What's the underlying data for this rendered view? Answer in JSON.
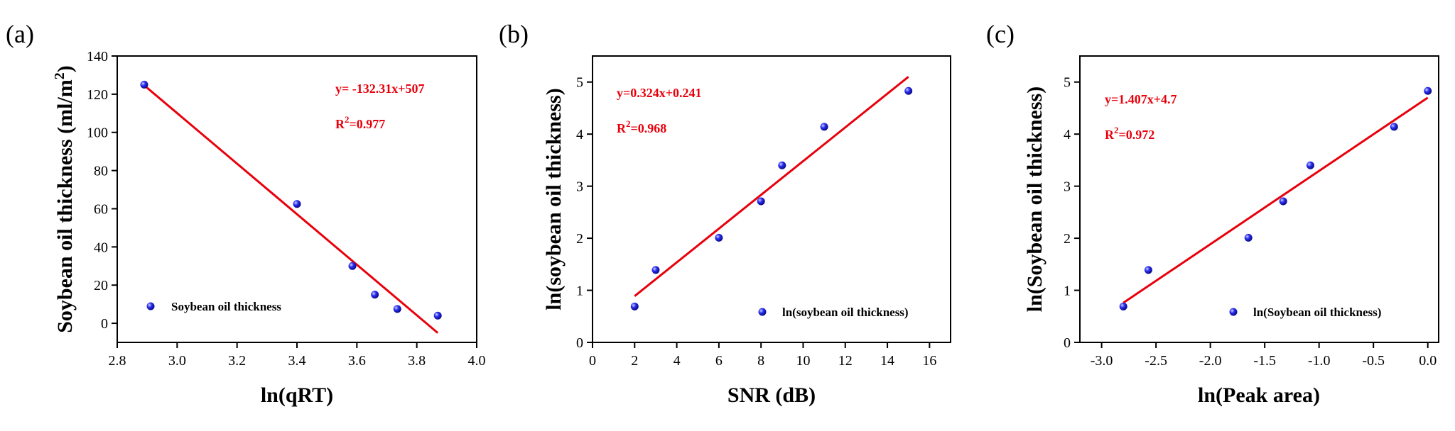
{
  "chart_data": [
    {
      "type": "scatter",
      "panel_label": "(a)",
      "title": "",
      "xlabel": "ln(qRT)",
      "ylabel": "Soybean oil thickness (ml/m²)",
      "xlim": [
        2.8,
        4.0
      ],
      "ylim": [
        -10,
        140
      ],
      "xticks": [
        "2.8",
        "3.0",
        "3.2",
        "3.4",
        "3.6",
        "3.8",
        "4.0"
      ],
      "yticks": [
        "0",
        "20",
        "40",
        "60",
        "80",
        "100",
        "120",
        "140"
      ],
      "series": [
        {
          "name": "Soybean oil thickness",
          "x": [
            2.89,
            3.4,
            3.585,
            3.66,
            3.735,
            3.87
          ],
          "y": [
            125,
            62.5,
            30,
            15,
            7.5,
            4
          ]
        }
      ],
      "fit_line": {
        "slope": -132.31,
        "intercept": 507,
        "x": [
          2.89,
          3.87
        ]
      },
      "annotations": {
        "equation": "y= -132.31x+507",
        "r2_prefix": "R",
        "r2_sup": "2",
        "r2_value": "=0.977"
      },
      "legend_position": "bottom-left",
      "colors": {
        "points": "#1f1fd6",
        "fit": "#e8000b"
      }
    },
    {
      "type": "scatter",
      "panel_label": "(b)",
      "title": "",
      "xlabel": "SNR (dB)",
      "ylabel": "ln(soybean oil thickness)",
      "xlim": [
        0,
        17
      ],
      "ylim": [
        0,
        5.5
      ],
      "xticks": [
        "0",
        "2",
        "4",
        "6",
        "8",
        "10",
        "12",
        "14",
        "16"
      ],
      "yticks": [
        "0",
        "1",
        "2",
        "3",
        "4",
        "5"
      ],
      "series": [
        {
          "name": "ln(soybean oil thickness)",
          "x": [
            2,
            3,
            6,
            8,
            9,
            11,
            15
          ],
          "y": [
            0.69,
            1.39,
            2.01,
            2.71,
            3.4,
            4.14,
            4.83
          ]
        }
      ],
      "fit_line": {
        "slope": 0.324,
        "intercept": 0.241,
        "x": [
          2,
          15
        ]
      },
      "annotations": {
        "equation": "y=0.324x+0.241",
        "r2_prefix": "R",
        "r2_sup": "2",
        "r2_value": "=0.968"
      },
      "legend_position": "bottom-right",
      "colors": {
        "points": "#1f1fd6",
        "fit": "#e8000b"
      }
    },
    {
      "type": "scatter",
      "panel_label": "(c)",
      "title": "",
      "xlabel": "ln(Peak area)",
      "ylabel": "ln(Soybean oil thickness)",
      "xlim": [
        -3.2,
        0.1
      ],
      "ylim": [
        0,
        5.5
      ],
      "xticks": [
        "-3.0",
        "-2.5",
        "-2.0",
        "-1.5",
        "-1.0",
        "-0.5",
        "0.0"
      ],
      "yticks": [
        "0",
        "1",
        "2",
        "3",
        "4",
        "5"
      ],
      "series": [
        {
          "name": "ln(Soybean oil thickness)",
          "x": [
            -2.8,
            -2.57,
            -1.65,
            -1.33,
            -1.08,
            -0.31,
            0.0
          ],
          "y": [
            0.69,
            1.39,
            2.01,
            2.71,
            3.4,
            4.14,
            4.83
          ]
        }
      ],
      "fit_line": {
        "slope": 1.407,
        "intercept": 4.7,
        "x": [
          -2.8,
          0.0
        ]
      },
      "annotations": {
        "equation": "y=1.407x+4.7",
        "r2_prefix": "R",
        "r2_sup": "2",
        "r2_value": "=0.972"
      },
      "legend_position": "bottom-right",
      "colors": {
        "points": "#1f1fd6",
        "fit": "#e8000b"
      }
    }
  ]
}
